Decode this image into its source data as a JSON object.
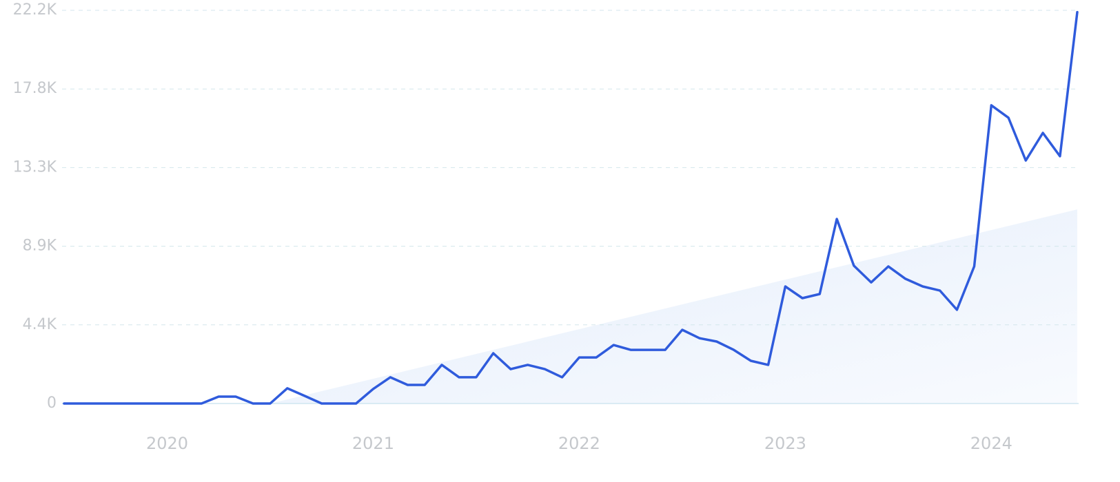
{
  "chart_data": {
    "type": "line",
    "color": "#2f5bdc",
    "grid": true,
    "x": [
      2019.5,
      2019.583,
      2019.667,
      2019.75,
      2019.833,
      2019.917,
      2020,
      2020.083,
      2020.167,
      2020.25,
      2020.333,
      2020.417,
      2020.5,
      2020.583,
      2020.667,
      2020.75,
      2020.833,
      2020.917,
      2021,
      2021.083,
      2021.167,
      2021.25,
      2021.333,
      2021.417,
      2021.5,
      2021.583,
      2021.667,
      2021.75,
      2021.833,
      2021.917,
      2022,
      2022.083,
      2022.167,
      2022.25,
      2022.333,
      2022.417,
      2022.5,
      2022.583,
      2022.667,
      2022.75,
      2022.833,
      2022.917,
      2023,
      2023.083,
      2023.167,
      2023.25,
      2023.333,
      2023.417,
      2023.5,
      2023.583,
      2023.667,
      2023.75,
      2023.833,
      2023.917,
      2024,
      2024.083,
      2024.167,
      2024.25,
      2024.333,
      2024.417
    ],
    "values": [
      0,
      0,
      0,
      0,
      0,
      0,
      0,
      0,
      0,
      390,
      390,
      0,
      0,
      860,
      430,
      0,
      0,
      0,
      820,
      1480,
      1050,
      1050,
      2180,
      1480,
      1480,
      2840,
      1940,
      2180,
      1940,
      1480,
      2600,
      2600,
      3300,
      3030,
      3030,
      3030,
      4160,
      3690,
      3500,
      3030,
      2410,
      2180,
      6610,
      5950,
      6180,
      10420,
      7780,
      6840,
      7740,
      7040,
      6610,
      6380,
      5290,
      7740,
      16840,
      16140,
      13720,
      15280,
      13960,
      22100
    ],
    "trend": {
      "x": [
        2020.5,
        2024.417
      ],
      "values": [
        0,
        10960
      ],
      "color": "#dce8fa"
    },
    "xlim": [
      2019.5,
      2024.417
    ],
    "xticks": [
      2020,
      2021,
      2022,
      2023,
      2024
    ],
    "ylim": [
      0,
      22200
    ],
    "yticks": [
      0,
      {
        "value": 4440,
        "label": "4.4K"
      },
      {
        "value": 8880,
        "label": "8.9K"
      },
      {
        "value": 13320,
        "label": "13.3K"
      },
      {
        "value": 17760,
        "label": "17.8K"
      },
      {
        "value": 22200,
        "label": "22.2K"
      }
    ]
  }
}
